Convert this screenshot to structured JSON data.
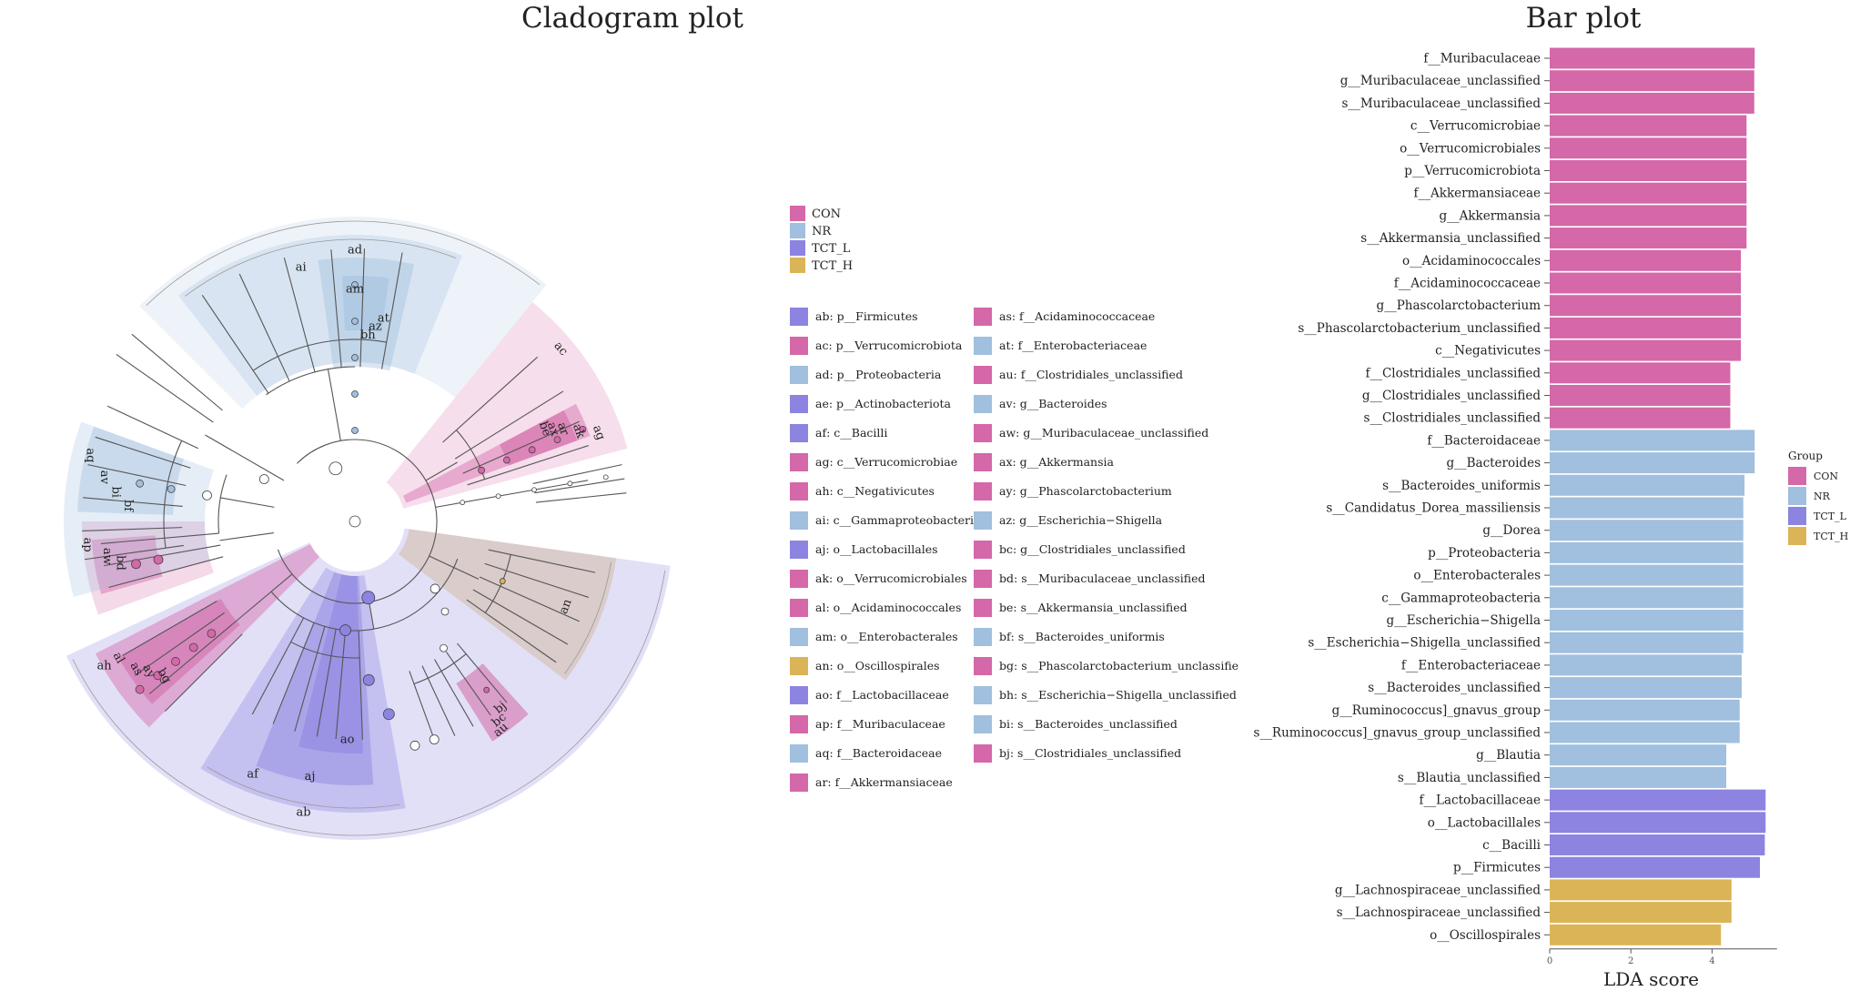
{
  "titles": {
    "cladogram": "Cladogram plot",
    "bar": "Bar plot"
  },
  "colors": {
    "CON": "#d468a8",
    "NR": "#a1bfde",
    "TCT_L": "#8c84e0",
    "TCT_H": "#dcb458"
  },
  "group_legend": {
    "title": "Group",
    "items": [
      "CON",
      "NR",
      "TCT_L",
      "TCT_H"
    ]
  },
  "taxa_legend": [
    {
      "key": "ab",
      "name": "p__Firmicutes",
      "group": "TCT_L"
    },
    {
      "key": "ac",
      "name": "p__Verrucomicrobiota",
      "group": "CON"
    },
    {
      "key": "ad",
      "name": "p__Proteobacteria",
      "group": "NR"
    },
    {
      "key": "ae",
      "name": "p__Actinobacteriota",
      "group": "TCT_L"
    },
    {
      "key": "af",
      "name": "c__Bacilli",
      "group": "TCT_L"
    },
    {
      "key": "ag",
      "name": "c__Verrucomicrobiae",
      "group": "CON"
    },
    {
      "key": "ah",
      "name": "c__Negativicutes",
      "group": "CON"
    },
    {
      "key": "ai",
      "name": "c__Gammaproteobacteria",
      "group": "NR"
    },
    {
      "key": "aj",
      "name": "o__Lactobacillales",
      "group": "TCT_L"
    },
    {
      "key": "ak",
      "name": "o__Verrucomicrobiales",
      "group": "CON"
    },
    {
      "key": "al",
      "name": "o__Acidaminococcales",
      "group": "CON"
    },
    {
      "key": "am",
      "name": "o__Enterobacterales",
      "group": "NR"
    },
    {
      "key": "an",
      "name": "o__Oscillospirales",
      "group": "TCT_H"
    },
    {
      "key": "ao",
      "name": "f__Lactobacillaceae",
      "group": "TCT_L"
    },
    {
      "key": "ap",
      "name": "f__Muribaculaceae",
      "group": "CON"
    },
    {
      "key": "aq",
      "name": "f__Bacteroidaceae",
      "group": "NR"
    },
    {
      "key": "ar",
      "name": "f__Akkermansiaceae",
      "group": "CON"
    },
    {
      "key": "as",
      "name": "f__Acidaminococcaceae",
      "group": "CON"
    },
    {
      "key": "at",
      "name": "f__Enterobacteriaceae",
      "group": "NR"
    },
    {
      "key": "au",
      "name": "f__Clostridiales_unclassified",
      "group": "CON"
    },
    {
      "key": "av",
      "name": "g__Bacteroides",
      "group": "NR"
    },
    {
      "key": "aw",
      "name": "g__Muribaculaceae_unclassified",
      "group": "CON"
    },
    {
      "key": "ax",
      "name": "g__Akkermansia",
      "group": "CON"
    },
    {
      "key": "ay",
      "name": "g__Phascolarctobacterium",
      "group": "CON"
    },
    {
      "key": "az",
      "name": "g__Escherichia−Shigella",
      "group": "NR"
    },
    {
      "key": "bc",
      "name": "g__Clostridiales_unclassified",
      "group": "CON"
    },
    {
      "key": "bd",
      "name": "s__Muribaculaceae_unclassified",
      "group": "CON"
    },
    {
      "key": "be",
      "name": "s__Akkermansia_unclassified",
      "group": "CON"
    },
    {
      "key": "bf",
      "name": "s__Bacteroides_uniformis",
      "group": "NR"
    },
    {
      "key": "bg",
      "name": "s__Phascolarctobacterium_unclassifie",
      "group": "CON"
    },
    {
      "key": "bh",
      "name": "s__Escherichia−Shigella_unclassified",
      "group": "NR"
    },
    {
      "key": "bi",
      "name": "s__Bacteroides_unclassified",
      "group": "NR"
    },
    {
      "key": "bj",
      "name": "s__Clostridiales_unclassified",
      "group": "CON"
    }
  ],
  "cladogram": {
    "sectors": [
      {
        "label": "ad",
        "group": "NR"
      },
      {
        "label": "ai",
        "group": "NR"
      },
      {
        "label": "am",
        "group": "NR"
      },
      {
        "label": "ac",
        "group": "CON"
      },
      {
        "label": "ag",
        "group": "CON"
      },
      {
        "label": "ak",
        "group": "CON"
      },
      {
        "label": "ar",
        "group": "CON"
      },
      {
        "label": "ax",
        "group": "CON"
      },
      {
        "label": "be",
        "group": "CON"
      },
      {
        "label": "an",
        "group": "TCT_H"
      },
      {
        "label": "ab",
        "group": "TCT_L"
      },
      {
        "label": "af",
        "group": "TCT_L"
      },
      {
        "label": "aj",
        "group": "TCT_L"
      },
      {
        "label": "ao",
        "group": "TCT_L"
      },
      {
        "label": "ah",
        "group": "CON"
      },
      {
        "label": "al",
        "group": "CON"
      },
      {
        "label": "as",
        "group": "CON"
      },
      {
        "label": "ay",
        "group": "CON"
      },
      {
        "label": "bg",
        "group": "CON"
      },
      {
        "label": "au",
        "group": "CON"
      },
      {
        "label": "bc",
        "group": "CON"
      },
      {
        "label": "bj",
        "group": "CON"
      },
      {
        "label": "ap",
        "group": "CON"
      },
      {
        "label": "aw",
        "group": "CON"
      },
      {
        "label": "bd",
        "group": "CON"
      },
      {
        "label": "aq",
        "group": "NR"
      },
      {
        "label": "av",
        "group": "NR"
      },
      {
        "label": "bi",
        "group": "NR"
      },
      {
        "label": "bf",
        "group": "NR"
      },
      {
        "label": "at",
        "group": "NR"
      },
      {
        "label": "az",
        "group": "NR"
      },
      {
        "label": "bh",
        "group": "NR"
      }
    ]
  },
  "chart_data": {
    "type": "bar",
    "orientation": "horizontal",
    "title": "Bar plot",
    "xlabel": "LDA score",
    "ylabel": "",
    "xlim": [
      0,
      5.6
    ],
    "xticks": [
      0,
      2,
      4
    ],
    "legend": {
      "title": "Group",
      "placement": "right"
    },
    "categories": [
      "f__Muribaculaceae",
      "g__Muribaculaceae_unclassified",
      "s__Muribaculaceae_unclassified",
      "c__Verrucomicrobiae",
      "o__Verrucomicrobiales",
      "p__Verrucomicrobiota",
      "f__Akkermansiaceae",
      "g__Akkermansia",
      "s__Akkermansia_unclassified",
      "o__Acidaminococcales",
      "f__Acidaminococcaceae",
      "g__Phascolarctobacterium",
      "s__Phascolarctobacterium_unclassified",
      "c__Negativicutes",
      "f__Clostridiales_unclassified",
      "g__Clostridiales_unclassified",
      "s__Clostridiales_unclassified",
      "f__Bacteroidaceae",
      "g__Bacteroides",
      "s__Bacteroides_uniformis",
      "s__Candidatus_Dorea_massiliensis",
      "g__Dorea",
      "p__Proteobacteria",
      "o__Enterobacterales",
      "c__Gammaproteobacteria",
      "g__Escherichia−Shigella",
      "s__Escherichia−Shigella_unclassified",
      "f__Enterobacteriaceae",
      "s__Bacteroides_unclassified",
      "g__Ruminococcus]_gnavus_group",
      "s__Ruminococcus]_gnavus_group_unclassified",
      "g__Blautia",
      "s__Blautia_unclassified",
      "f__Lactobacillaceae",
      "o__Lactobacillales",
      "c__Bacilli",
      "p__Firmicutes",
      "g__Lachnospiraceae_unclassified",
      "s__Lachnospiraceae_unclassified",
      "o__Oscillospirales"
    ],
    "values": [
      5.05,
      5.04,
      5.04,
      4.85,
      4.85,
      4.85,
      4.85,
      4.85,
      4.85,
      4.71,
      4.71,
      4.71,
      4.71,
      4.71,
      4.45,
      4.45,
      4.45,
      5.05,
      5.05,
      4.8,
      4.77,
      4.77,
      4.77,
      4.77,
      4.77,
      4.77,
      4.77,
      4.73,
      4.73,
      4.68,
      4.68,
      4.35,
      4.35,
      5.32,
      5.32,
      5.3,
      5.18,
      4.48,
      4.48,
      4.22
    ],
    "groups": [
      "CON",
      "CON",
      "CON",
      "CON",
      "CON",
      "CON",
      "CON",
      "CON",
      "CON",
      "CON",
      "CON",
      "CON",
      "CON",
      "CON",
      "CON",
      "CON",
      "CON",
      "NR",
      "NR",
      "NR",
      "NR",
      "NR",
      "NR",
      "NR",
      "NR",
      "NR",
      "NR",
      "NR",
      "NR",
      "NR",
      "NR",
      "NR",
      "NR",
      "TCT_L",
      "TCT_L",
      "TCT_L",
      "TCT_L",
      "TCT_H",
      "TCT_H",
      "TCT_H"
    ]
  }
}
